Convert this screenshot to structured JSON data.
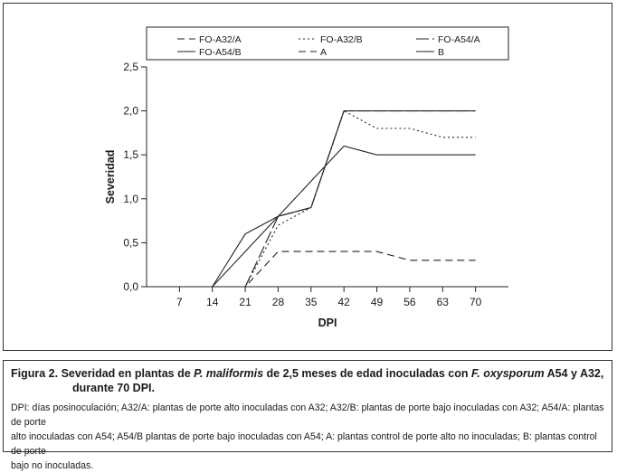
{
  "chart_data": {
    "type": "line",
    "xlabel": "DPI",
    "ylabel": "Severidad",
    "x": [
      7,
      14,
      21,
      28,
      35,
      42,
      49,
      56,
      63,
      70
    ],
    "x_ticks": [
      "7",
      "14",
      "21",
      "28",
      "35",
      "42",
      "49",
      "56",
      "63",
      "70"
    ],
    "y_ticks": [
      "0,0",
      "0,5",
      "1,0",
      "1,5",
      "2,0",
      "2,5"
    ],
    "ylim": [
      0,
      2.5
    ],
    "grid": false,
    "legend_position": "top",
    "series": [
      {
        "name": "FO-A32/A",
        "style": "dashed",
        "values": [
          0,
          0,
          0,
          0.4,
          0.4,
          0.4,
          0.4,
          0.3,
          0.3,
          0.3
        ]
      },
      {
        "name": "FO-A32/B",
        "style": "dotted",
        "values": [
          0,
          0,
          0,
          0.7,
          0.9,
          2.0,
          1.8,
          1.8,
          1.7,
          1.7
        ]
      },
      {
        "name": "FO-A54/A",
        "style": "long-dash",
        "values": [
          0,
          0,
          0,
          0.8,
          0.9,
          2.0,
          2.0,
          2.0,
          2.0,
          2.0
        ]
      },
      {
        "name": "FO-A54/B",
        "style": "solid",
        "values": [
          0,
          0,
          0.4,
          0.8,
          1.2,
          1.6,
          1.5,
          1.5,
          1.5,
          1.5
        ]
      },
      {
        "name": "A",
        "style": "dashed",
        "values": [
          0,
          0,
          0,
          0,
          0,
          0,
          0,
          0,
          0,
          0
        ]
      },
      {
        "name": "B",
        "style": "solid",
        "values": [
          0,
          0,
          0.6,
          0.8,
          0.9,
          2.0,
          2.0,
          2.0,
          2.0,
          2.0
        ]
      }
    ]
  },
  "caption": {
    "title_lead": "Figura 2. Severidad en plantas de ",
    "title_species1": "P. maliformis",
    "title_mid": " de 2,5 meses de edad inoculadas con ",
    "title_species2": "F. oxysporum",
    "title_tail": " A54 y A32,",
    "title_line2": "durante 70 DPI.",
    "notes_line1": "DPI: días posinoculación; A32/A: plantas de porte alto inoculadas con A32; A32/B: plantas de porte bajo inoculadas con A32; A54/A: plantas de porte",
    "notes_line2": "alto inoculadas con A54; A54/B plantas de porte bajo inoculadas con A54; A: plantas control de porte alto no inoculadas; B: plantas control de porte",
    "notes_line3": "bajo no inoculadas."
  }
}
